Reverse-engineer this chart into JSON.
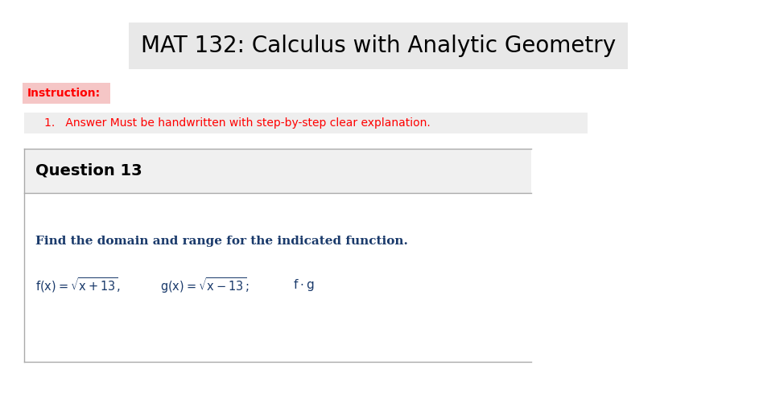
{
  "title": "MAT 132: Calculus with Analytic Geometry",
  "title_fontsize": 20,
  "title_color": "#000000",
  "bg_color": "#ffffff",
  "header_bg": "#e8e8e8",
  "instruction_label": "Instruction:",
  "instruction_color": "#ff0000",
  "instruction_bg": "#f5c6c6",
  "instruction_item": "1.   Answer Must be handwritten with step-by-step clear explanation.",
  "instruction_item_color": "#ff0000",
  "instruction_item_bg": "#eeeeee",
  "question_label": "Question 13",
  "question_bg": "#f0f0f0",
  "question_text": "Find the domain and range for the indicated function.",
  "question_text_color": "#1a3a6b",
  "math_color": "#1a3a6b",
  "box_border_color": "#aaaaaa",
  "white_bg": "#ffffff"
}
